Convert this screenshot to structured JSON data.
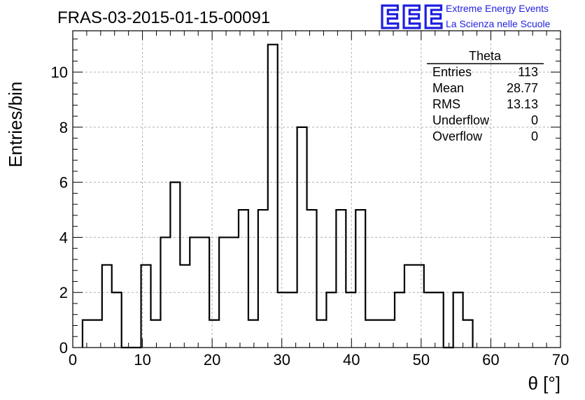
{
  "header": {
    "title": "FRAS-03-2015-01-15-00091",
    "logo_letters": "EEE",
    "logo_line1": "Extreme Energy Events",
    "logo_line2": "La Scienza nelle Scuole"
  },
  "stats_box": {
    "title": "Theta",
    "rows": [
      {
        "label": "Entries",
        "value": "113"
      },
      {
        "label": "Mean",
        "value": "28.77"
      },
      {
        "label": "RMS",
        "value": "13.13"
      },
      {
        "label": "Underflow",
        "value": "0"
      },
      {
        "label": "Overflow",
        "value": "0"
      }
    ]
  },
  "chart_data": {
    "type": "bar",
    "subtype": "step-histogram",
    "title": "FRAS-03-2015-01-15-00091",
    "xlabel": "θ [°]",
    "ylabel": "Entries/bin",
    "xlim": [
      0,
      70
    ],
    "ylim": [
      0,
      11.5
    ],
    "xticks": [
      0,
      10,
      20,
      30,
      40,
      50,
      60,
      70
    ],
    "yticks": [
      0,
      2,
      4,
      6,
      8,
      10
    ],
    "grid": true,
    "colors": {
      "line": "#000000",
      "grid": "#b0b0b0",
      "logo": "#1f1fe0"
    },
    "bin_width": 1.4,
    "bin_edges": [
      1.4,
      2.8,
      4.2,
      5.6,
      7.0,
      8.4,
      9.8,
      11.2,
      12.6,
      14.0,
      15.4,
      16.8,
      18.2,
      19.6,
      21.0,
      22.4,
      23.8,
      25.2,
      26.6,
      28.0,
      29.4,
      30.8,
      32.2,
      33.6,
      35.0,
      36.4,
      37.8,
      39.2,
      40.6,
      42.0,
      43.4,
      44.8,
      46.2,
      47.6,
      49.0,
      50.4,
      51.8,
      53.2,
      54.6,
      56.0,
      57.4
    ],
    "values": [
      1,
      1,
      3,
      2,
      0,
      0,
      3,
      1,
      4,
      6,
      3,
      4,
      4,
      1,
      4,
      4,
      5,
      1,
      5,
      11,
      2,
      2,
      8,
      5,
      1,
      2,
      5,
      2,
      5,
      1,
      1,
      1,
      2,
      3,
      3,
      2,
      2,
      0,
      2,
      1
    ]
  }
}
